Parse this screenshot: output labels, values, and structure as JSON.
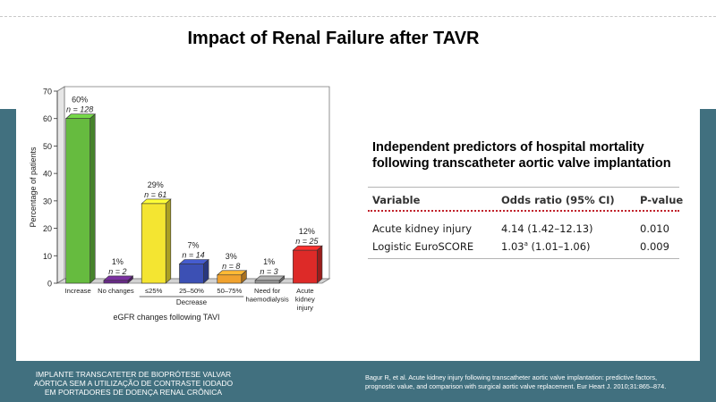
{
  "slide": {
    "title": "Impact of Renal Failure after TAVR"
  },
  "chart_data": {
    "type": "bar",
    "ylabel": "Percentage of patients",
    "xlabel": "eGFR changes following TAVI",
    "group_label": "Decrease",
    "ylim": [
      0,
      70
    ],
    "yticks": [
      "0",
      "10",
      "20",
      "30",
      "40",
      "50",
      "60",
      "70"
    ],
    "categories": [
      [
        "Increase"
      ],
      [
        "No changes"
      ],
      [
        "≤25%"
      ],
      [
        "25–50%"
      ],
      [
        "50–75%"
      ],
      [
        "Need for",
        "haemodialysis"
      ],
      [
        "Acute",
        "kidney",
        "injury"
      ]
    ],
    "values": [
      60,
      1,
      29,
      7,
      3,
      1,
      12
    ],
    "pct_labels": [
      "60%",
      "1%",
      "29%",
      "7%",
      "3%",
      "1%",
      "12%"
    ],
    "n_labels": [
      "n = 128",
      "n = 2",
      "n = 61",
      "n = 14",
      "n = 8",
      "n = 3",
      "n = 25"
    ],
    "colors": [
      "#66bb3f",
      "#6b2a8c",
      "#f4e531",
      "#3c50b4",
      "#f0a22e",
      "#9a9a9a",
      "#dd2a28"
    ]
  },
  "table": {
    "title_line1": "Independent predictors of hospital mortality",
    "title_line2": "following transcatheter aortic valve implantation",
    "headers": [
      "Variable",
      "Odds ratio (95% CI)",
      "P-value"
    ],
    "rows": [
      {
        "variable": "Acute kidney injury",
        "odds": "4.14 (1.42–12.13)",
        "odds_sup": "",
        "odds_rest": "",
        "p": "0.010"
      },
      {
        "variable": "Logistic EuroSCORE",
        "odds": "1.03",
        "odds_sup": "a",
        "odds_rest": " (1.01–1.06)",
        "p": "0.009"
      }
    ]
  },
  "footer": {
    "left_line1": "IMPLANTE TRANSCATETER DE BIOPRÓTESE VALVAR",
    "left_line2": "AÓRTICA SEM A UTILIZAÇÃO DE CONTRASTE IODADO",
    "left_line3": "EM PORTADORES DE DOENÇA RENAL CRÔNICA",
    "right_line1": "Bagur R, et al. Acute kidney injury following transcatheter aortic valve implantation: predictive factors,",
    "right_line2": "prognostic value, and comparison with surgical aortic valve replacement. Eur Heart J. 2010;31:865–874."
  }
}
